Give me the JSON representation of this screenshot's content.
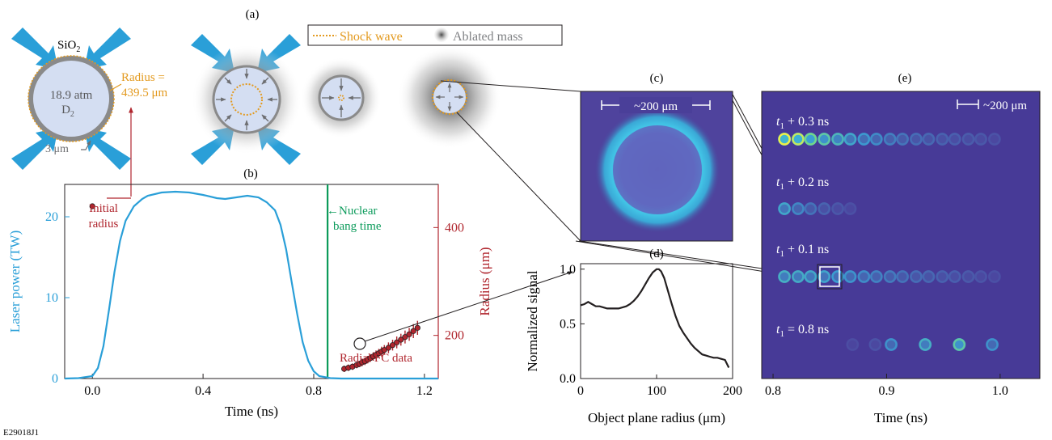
{
  "figure_id": "E29018J1",
  "panel_labels": {
    "a": "(a)",
    "b": "(b)",
    "c": "(c)",
    "d": "(d)",
    "e": "(e)"
  },
  "schematic": {
    "shell_material": "SiO",
    "shell_material_sub": "2",
    "fill_pressure": "18.9 atm",
    "fill_gas": "D",
    "fill_gas_sub": "2",
    "radius_label_line1": "Radius =",
    "radius_label_line2": "439.5 μm",
    "thickness_label": "3 μm",
    "legend_shock": "Shock wave",
    "legend_ablated": "Ablated mass"
  },
  "colors": {
    "laser": "#2a9fd8",
    "radius": "#b0262e",
    "bang": "#0c9b5b",
    "shock": "#e39a1f",
    "shell": "#8a8a8a",
    "shell_fill": "#d4def2",
    "image_bg": "#4a3f99",
    "ring": "#39b6dc"
  },
  "scale_bar_c": "~200 μm",
  "scale_bar_e": "~200 μm",
  "chart_data": [
    {
      "id": "b",
      "type": "line",
      "xlabel": "Time (ns)",
      "ylabel": "Laser power (TW)",
      "y2label": "Radius (μm)",
      "xlim": [
        -0.1,
        1.25
      ],
      "ylim": [
        0,
        24
      ],
      "y2lim": [
        120,
        480
      ],
      "xticks": [
        0.0,
        0.4,
        0.8,
        1.2
      ],
      "xticklabels": [
        "0.0",
        "0.4",
        "0.8",
        "1.2"
      ],
      "yticks": [
        0,
        10,
        20
      ],
      "yticklabels": [
        "0",
        "10",
        "20"
      ],
      "y2ticks": [
        200,
        400
      ],
      "y2ticklabels": [
        "200",
        "400"
      ],
      "series": [
        {
          "role": "laser",
          "x": [
            -0.1,
            -0.05,
            0.0,
            0.02,
            0.04,
            0.06,
            0.08,
            0.1,
            0.12,
            0.15,
            0.18,
            0.2,
            0.25,
            0.3,
            0.35,
            0.4,
            0.45,
            0.48,
            0.52,
            0.56,
            0.6,
            0.63,
            0.66,
            0.68,
            0.7,
            0.72,
            0.74,
            0.76,
            0.78,
            0.8,
            0.82,
            0.86,
            0.9,
            1.25
          ],
          "y": [
            0.0,
            0.05,
            0.3,
            1.3,
            4.0,
            8.5,
            13.2,
            17.0,
            19.5,
            21.3,
            22.2,
            22.6,
            23.0,
            23.1,
            23.0,
            22.7,
            22.3,
            22.2,
            22.4,
            22.6,
            22.4,
            21.8,
            20.8,
            19.0,
            16.0,
            12.0,
            8.0,
            4.5,
            2.2,
            0.9,
            0.3,
            0.05,
            0.0,
            0.0
          ]
        },
        {
          "role": "radius_data",
          "x": [
            0.0,
            0.91,
            0.925,
            0.94,
            0.955,
            0.965,
            0.975,
            0.985,
            0.995,
            1.005,
            1.015,
            1.025,
            1.035,
            1.045,
            1.055,
            1.07,
            1.085,
            1.1,
            1.115,
            1.13,
            1.145,
            1.16,
            1.175
          ],
          "y": [
            439.5,
            138,
            140,
            142,
            145,
            147,
            150,
            152,
            155,
            158,
            161,
            164,
            167,
            170,
            173,
            177,
            182,
            187,
            192,
            197,
            202,
            208,
            214
          ],
          "err": [
            0,
            6,
            6,
            6,
            6,
            6,
            7,
            7,
            7,
            7,
            8,
            8,
            8,
            9,
            9,
            10,
            10,
            11,
            11,
            12,
            12,
            13,
            13
          ]
        }
      ],
      "bang_time": 0.85,
      "annotations": {
        "initial_radius": [
          "Initial",
          "radius"
        ],
        "bang_time": [
          "←Nuclear",
          "bang time"
        ],
        "radial_fc": "Radial FC data"
      }
    },
    {
      "id": "d",
      "type": "line",
      "xlabel": "Object plane radius (μm)",
      "ylabel": "Normalized signal",
      "xlim": [
        0,
        200
      ],
      "ylim": [
        0,
        1.05
      ],
      "xticks": [
        0,
        100,
        200
      ],
      "xticklabels": [
        "0",
        "100",
        "200"
      ],
      "yticks": [
        0,
        0.5,
        1.0
      ],
      "yticklabels": [
        "0.0",
        "0.5",
        "1.0"
      ],
      "series": [
        {
          "role": "profile",
          "x": [
            0,
            5,
            10,
            15,
            20,
            25,
            30,
            35,
            40,
            45,
            50,
            55,
            60,
            65,
            70,
            75,
            80,
            85,
            90,
            95,
            100,
            103,
            106,
            110,
            115,
            120,
            125,
            130,
            135,
            140,
            145,
            150,
            155,
            160,
            165,
            170,
            175,
            180,
            185,
            190,
            195
          ],
          "y": [
            0.67,
            0.68,
            0.7,
            0.68,
            0.66,
            0.66,
            0.65,
            0.64,
            0.64,
            0.64,
            0.64,
            0.65,
            0.66,
            0.68,
            0.71,
            0.75,
            0.8,
            0.86,
            0.92,
            0.97,
            1.0,
            1.0,
            0.98,
            0.92,
            0.8,
            0.68,
            0.57,
            0.48,
            0.42,
            0.37,
            0.32,
            0.28,
            0.25,
            0.22,
            0.21,
            0.2,
            0.19,
            0.19,
            0.18,
            0.17,
            0.1
          ]
        }
      ]
    },
    {
      "id": "e",
      "type": "scatter",
      "xlabel": "Time (ns)",
      "xlim": [
        0.79,
        1.035
      ],
      "xticks": [
        0.8,
        0.9,
        1.0
      ],
      "xticklabels": [
        "0.8",
        "0.9",
        "1.0"
      ],
      "rows": [
        {
          "label": "t",
          "label_sub": "1",
          "label_rest": " + 0.3 ns",
          "times": [
            0.81,
            0.822,
            0.833,
            0.845,
            0.857,
            0.868,
            0.88,
            0.891,
            0.903,
            0.914,
            0.926,
            0.937,
            0.949,
            0.96,
            0.972,
            0.983,
            0.995
          ],
          "intensity": [
            1.0,
            0.95,
            0.85,
            0.75,
            0.65,
            0.55,
            0.48,
            0.42,
            0.36,
            0.31,
            0.27,
            0.24,
            0.21,
            0.19,
            0.17,
            0.15,
            0.12
          ]
        },
        {
          "label": "t",
          "label_sub": "1",
          "label_rest": " + 0.2 ns",
          "times": [
            0.81,
            0.822,
            0.833,
            0.845,
            0.857,
            0.868
          ],
          "intensity": [
            0.55,
            0.4,
            0.3,
            0.22,
            0.15,
            0.1
          ]
        },
        {
          "label": "t",
          "label_sub": "1",
          "label_rest": " + 0.1 ns",
          "times": [
            0.81,
            0.822,
            0.833,
            0.845,
            0.857,
            0.868,
            0.88,
            0.891,
            0.903,
            0.914,
            0.926,
            0.937,
            0.949,
            0.96,
            0.972,
            0.983,
            0.995
          ],
          "intensity": [
            0.6,
            0.58,
            0.56,
            0.54,
            0.5,
            0.46,
            0.42,
            0.38,
            0.34,
            0.3,
            0.27,
            0.24,
            0.21,
            0.19,
            0.16,
            0.13,
            0.1
          ]
        },
        {
          "label": "t",
          "label_sub": "1",
          "label_rest": " = 0.8 ns",
          "times": [
            0.87,
            0.89,
            0.904,
            0.934,
            0.964,
            0.993
          ],
          "intensity": [
            0.08,
            0.12,
            0.45,
            0.6,
            0.75,
            0.45
          ]
        }
      ]
    }
  ]
}
